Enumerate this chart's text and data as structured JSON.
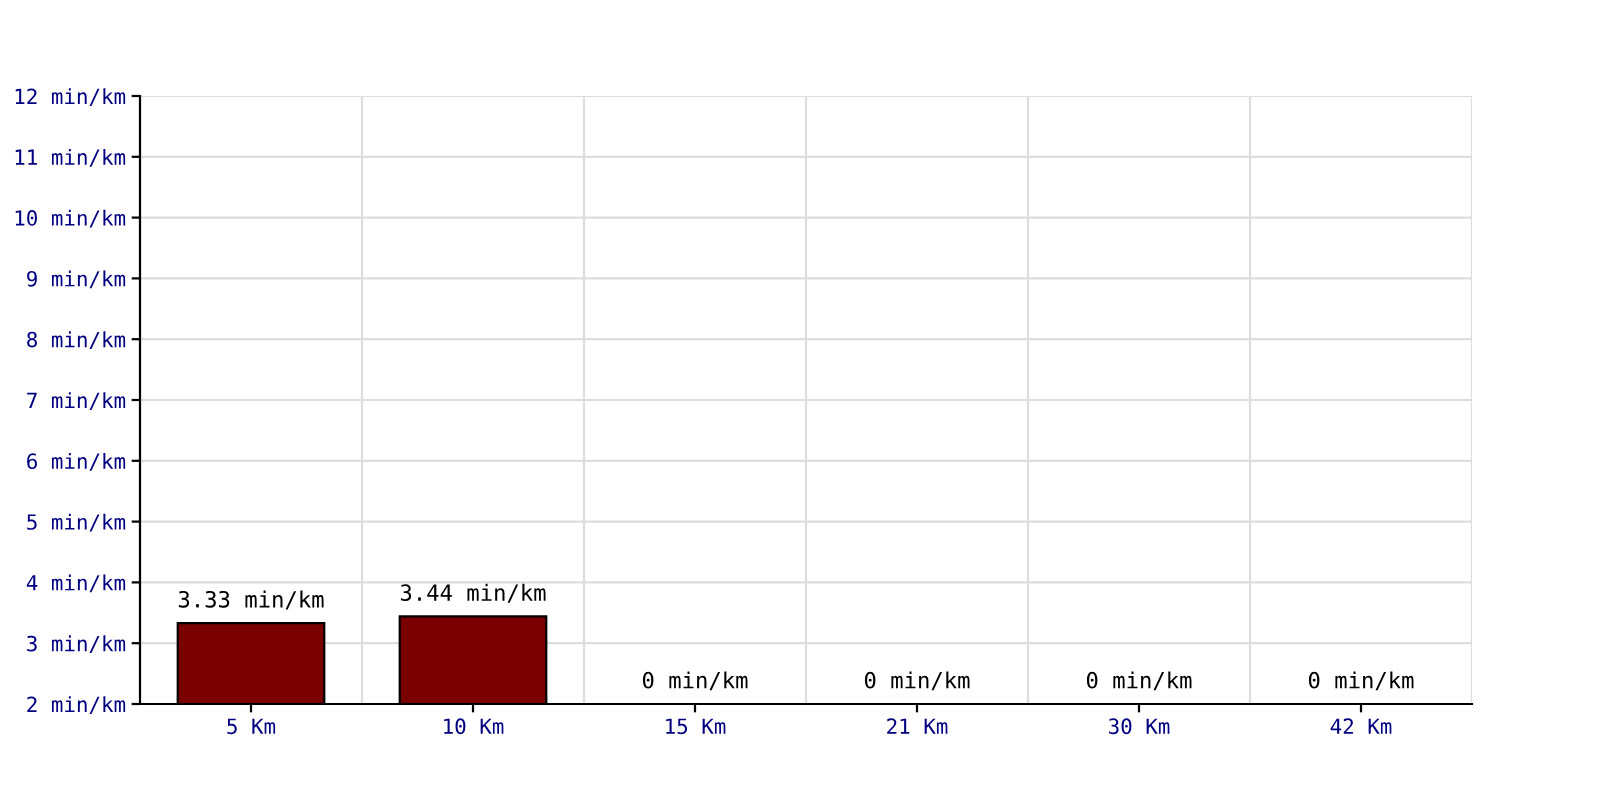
{
  "chart_data": {
    "type": "bar",
    "categories": [
      "5 Km",
      "10 Km",
      "15 Km",
      "21 Km",
      "30 Km",
      "42 Km"
    ],
    "values": [
      3.33,
      3.44,
      null,
      null,
      null,
      null
    ],
    "value_labels": [
      "3.33 min/km",
      "3.44 min/km",
      "0 min/km",
      "0 min/km",
      "0 min/km",
      "0 min/km"
    ],
    "color": "#7a0000",
    "ylim": [
      2,
      12
    ],
    "yticks": [
      {
        "value": 2,
        "label": "2 min/km"
      },
      {
        "value": 3,
        "label": "3 min/km"
      },
      {
        "value": 4,
        "label": "4 min/km"
      },
      {
        "value": 5,
        "label": "5 min/km"
      },
      {
        "value": 6,
        "label": "6 min/km"
      },
      {
        "value": 7,
        "label": "7 min/km"
      },
      {
        "value": 8,
        "label": "8 min/km"
      },
      {
        "value": 9,
        "label": "9 min/km"
      },
      {
        "value": 10,
        "label": "10 min/km"
      },
      {
        "value": 11,
        "label": "11 min/km"
      },
      {
        "value": 12,
        "label": "12 min/km"
      }
    ],
    "grid": true
  }
}
